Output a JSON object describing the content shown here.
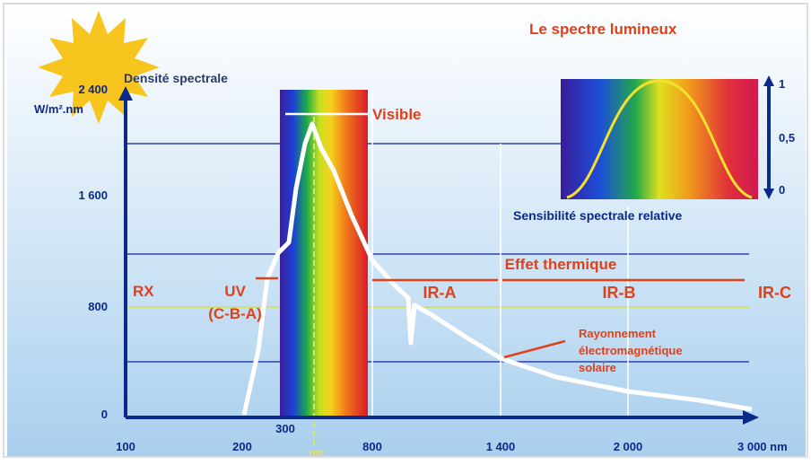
{
  "title": "Le spectre lumineux",
  "y_axis": {
    "label": "Densité spectrale",
    "unit": "W/m².nm",
    "ticks": [
      "2 400",
      "1 600",
      "800",
      "0"
    ]
  },
  "x_axis": {
    "ticks": [
      "100",
      "200",
      "300",
      "800",
      "1 400",
      "2 000",
      "3 000 nm"
    ],
    "unit_mark": "nm"
  },
  "visible_label": "Visible",
  "regions": [
    "RX",
    "UV",
    "(C-B-A)",
    "IR-A",
    "IR-B",
    "IR-C"
  ],
  "thermal_label": "Effet thermique",
  "curve_label": [
    "Rayonnement",
    "électromagnétique",
    "solaire"
  ],
  "inset": {
    "caption": "Sensibilité spectrale relative",
    "ticks": [
      "1",
      "0,5",
      "0"
    ]
  }
}
